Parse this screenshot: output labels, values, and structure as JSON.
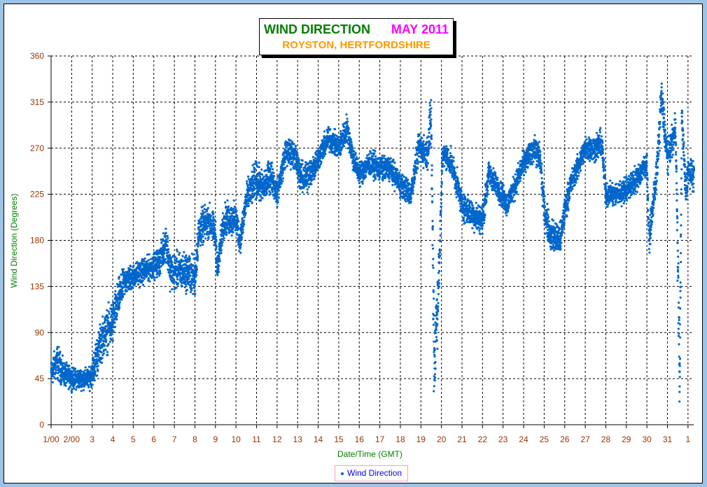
{
  "chart_data": {
    "type": "scatter",
    "title": "WIND DIRECTION",
    "title_month": "MAY 2011",
    "subtitle": "ROYSTON, HERTFORDSHIRE",
    "xlabel": "Date/Time (GMT)",
    "ylabel": "Wind Direction (Degrees)",
    "xlim": [
      1,
      32.3
    ],
    "ylim": [
      0,
      360
    ],
    "yticks": [
      0,
      45,
      90,
      135,
      180,
      225,
      270,
      315,
      360
    ],
    "xtick_labels": [
      "1/00",
      "2/00",
      "3",
      "4",
      "5",
      "6",
      "7",
      "8",
      "9",
      "10",
      "11",
      "12",
      "13",
      "14",
      "15",
      "16",
      "17",
      "18",
      "19",
      "20",
      "21",
      "22",
      "23",
      "24",
      "25",
      "26",
      "27",
      "28",
      "29",
      "30",
      "31",
      "1"
    ],
    "grid": true,
    "legend": {
      "position": "bottom-center",
      "entries": [
        "Wind Direction"
      ]
    },
    "series": [
      {
        "name": "Wind Direction",
        "color": "#0066cc",
        "trend_points_day_deg_spread": [
          [
            1.0,
            50,
            12
          ],
          [
            1.3,
            62,
            18
          ],
          [
            1.6,
            50,
            12
          ],
          [
            2.0,
            45,
            10
          ],
          [
            2.5,
            45,
            10
          ],
          [
            2.9,
            45,
            10
          ],
          [
            3.2,
            65,
            20
          ],
          [
            3.5,
            85,
            20
          ],
          [
            4.0,
            100,
            22
          ],
          [
            4.3,
            125,
            18
          ],
          [
            4.6,
            140,
            14
          ],
          [
            5.0,
            145,
            12
          ],
          [
            5.5,
            150,
            12
          ],
          [
            6.0,
            155,
            12
          ],
          [
            6.3,
            160,
            14
          ],
          [
            6.6,
            180,
            18
          ],
          [
            6.8,
            150,
            18
          ],
          [
            7.5,
            150,
            18
          ],
          [
            8.0,
            145,
            20
          ],
          [
            8.2,
            190,
            18
          ],
          [
            8.7,
            200,
            16
          ],
          [
            9.0,
            185,
            16
          ],
          [
            9.1,
            150,
            14
          ],
          [
            9.4,
            200,
            16
          ],
          [
            10.0,
            200,
            16
          ],
          [
            10.2,
            180,
            14
          ],
          [
            10.5,
            220,
            16
          ],
          [
            11.0,
            240,
            18
          ],
          [
            11.3,
            230,
            16
          ],
          [
            11.7,
            245,
            16
          ],
          [
            12.0,
            225,
            12
          ],
          [
            12.4,
            265,
            14
          ],
          [
            12.8,
            265,
            14
          ],
          [
            13.2,
            240,
            16
          ],
          [
            13.6,
            245,
            16
          ],
          [
            14.0,
            260,
            12
          ],
          [
            14.5,
            280,
            12
          ],
          [
            15.0,
            270,
            12
          ],
          [
            15.4,
            290,
            14
          ],
          [
            15.7,
            260,
            12
          ],
          [
            16.0,
            245,
            12
          ],
          [
            16.5,
            255,
            12
          ],
          [
            17.0,
            250,
            12
          ],
          [
            17.5,
            250,
            12
          ],
          [
            18.0,
            235,
            12
          ],
          [
            18.5,
            225,
            12
          ],
          [
            18.9,
            270,
            14
          ],
          [
            19.3,
            265,
            16
          ],
          [
            19.5,
            300,
            30
          ],
          [
            19.65,
            60,
            60
          ],
          [
            19.9,
            155,
            20
          ],
          [
            20.05,
            265,
            12
          ],
          [
            20.5,
            255,
            12
          ],
          [
            21.0,
            215,
            14
          ],
          [
            21.5,
            205,
            14
          ],
          [
            22.0,
            200,
            14
          ],
          [
            22.3,
            245,
            12
          ],
          [
            22.8,
            230,
            12
          ],
          [
            23.2,
            215,
            12
          ],
          [
            23.7,
            240,
            12
          ],
          [
            24.0,
            255,
            12
          ],
          [
            24.5,
            270,
            12
          ],
          [
            24.8,
            260,
            14
          ],
          [
            25.0,
            210,
            16
          ],
          [
            25.3,
            185,
            16
          ],
          [
            25.8,
            180,
            16
          ],
          [
            26.0,
            210,
            14
          ],
          [
            26.3,
            235,
            12
          ],
          [
            27.0,
            270,
            12
          ],
          [
            27.5,
            270,
            12
          ],
          [
            27.8,
            275,
            14
          ],
          [
            28.0,
            225,
            12
          ],
          [
            28.5,
            225,
            12
          ],
          [
            29.0,
            230,
            12
          ],
          [
            29.5,
            240,
            12
          ],
          [
            30.0,
            255,
            12
          ],
          [
            30.1,
            180,
            14
          ],
          [
            30.5,
            250,
            16
          ],
          [
            30.7,
            320,
            20
          ],
          [
            31.0,
            260,
            14
          ],
          [
            31.4,
            290,
            16
          ],
          [
            31.6,
            40,
            40
          ],
          [
            31.7,
            300,
            16
          ],
          [
            31.9,
            225,
            14
          ],
          [
            32.0,
            250,
            14
          ],
          [
            32.3,
            240,
            14
          ]
        ]
      }
    ]
  }
}
